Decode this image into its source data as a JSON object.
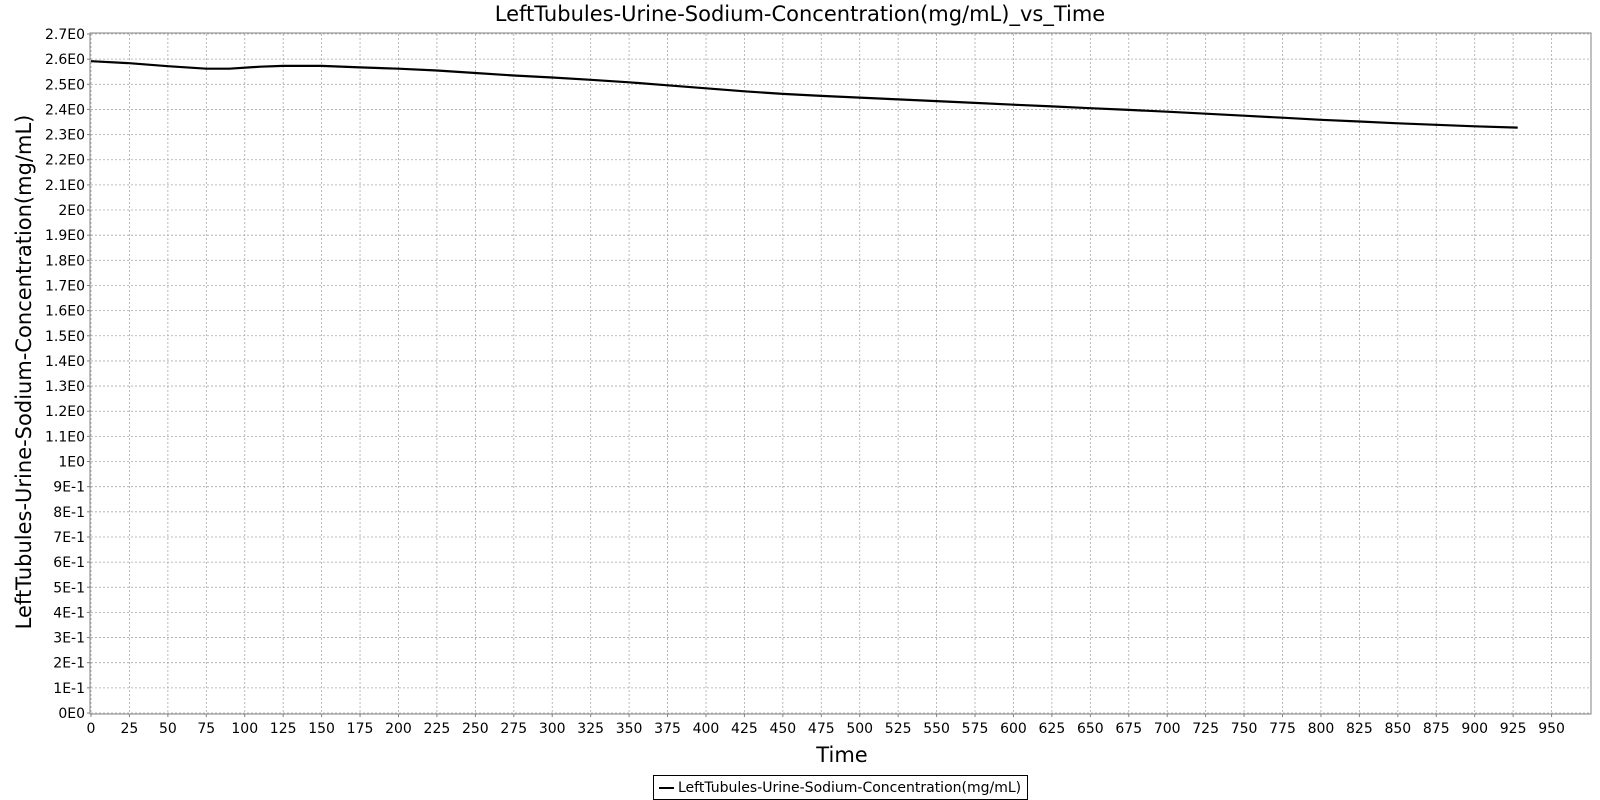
{
  "chart_data": {
    "type": "line",
    "title": "LeftTubules-Urine-Sodium-Concentration(mg/mL)_vs_Time",
    "xlabel": "Time",
    "ylabel": "LeftTubules-Urine-Sodium-Concentration(mg/mL)",
    "xlim": [
      0,
      975
    ],
    "ylim": [
      0,
      2.7
    ],
    "x_ticks": [
      0,
      25,
      50,
      75,
      100,
      125,
      150,
      175,
      200,
      225,
      250,
      275,
      300,
      325,
      350,
      375,
      400,
      425,
      450,
      475,
      500,
      525,
      550,
      575,
      600,
      625,
      650,
      675,
      700,
      725,
      750,
      775,
      800,
      825,
      850,
      875,
      900,
      925,
      950
    ],
    "x_tick_labels": [
      "0",
      "25",
      "50",
      "75",
      "100",
      "125",
      "150",
      "175",
      "200",
      "225",
      "250",
      "275",
      "300",
      "325",
      "350",
      "375",
      "400",
      "425",
      "450",
      "475",
      "500",
      "525",
      "550",
      "575",
      "600",
      "625",
      "650",
      "675",
      "700",
      "725",
      "750",
      "775",
      "800",
      "825",
      "850",
      "875",
      "900",
      "925",
      "950"
    ],
    "y_ticks": [
      0,
      0.1,
      0.2,
      0.3,
      0.4,
      0.5,
      0.6,
      0.7,
      0.8,
      0.9,
      1.0,
      1.1,
      1.2,
      1.3,
      1.4,
      1.5,
      1.6,
      1.7,
      1.8,
      1.9,
      2.0,
      2.1,
      2.2,
      2.3,
      2.4,
      2.5,
      2.6,
      2.7
    ],
    "y_tick_labels": [
      "0E0",
      "1E-1",
      "2E-1",
      "3E-1",
      "4E-1",
      "5E-1",
      "6E-1",
      "7E-1",
      "8E-1",
      "9E-1",
      "1E0",
      "1.1E0",
      "1.2E0",
      "1.3E0",
      "1.4E0",
      "1.5E0",
      "1.6E0",
      "1.7E0",
      "1.8E0",
      "1.9E0",
      "2E0",
      "2.1E0",
      "2.2E0",
      "2.3E0",
      "2.4E0",
      "2.5E0",
      "2.6E0",
      "2.7E0"
    ],
    "grid": true,
    "legend_position": "bottom-center",
    "series": [
      {
        "name": "LeftTubules-Urine-Sodium-Concentration(mg/mL)",
        "color": "#000000",
        "x": [
          0,
          25,
          50,
          75,
          90,
          110,
          125,
          150,
          175,
          200,
          225,
          250,
          275,
          300,
          325,
          350,
          375,
          400,
          425,
          450,
          475,
          500,
          525,
          550,
          575,
          600,
          625,
          650,
          675,
          700,
          725,
          750,
          775,
          800,
          825,
          850,
          875,
          900,
          928
        ],
        "y": [
          2.592,
          2.584,
          2.572,
          2.562,
          2.562,
          2.57,
          2.573,
          2.573,
          2.567,
          2.562,
          2.555,
          2.545,
          2.535,
          2.527,
          2.518,
          2.508,
          2.496,
          2.484,
          2.472,
          2.462,
          2.454,
          2.447,
          2.44,
          2.433,
          2.426,
          2.419,
          2.412,
          2.405,
          2.398,
          2.391,
          2.383,
          2.375,
          2.367,
          2.359,
          2.352,
          2.345,
          2.339,
          2.333,
          2.328
        ]
      }
    ]
  }
}
